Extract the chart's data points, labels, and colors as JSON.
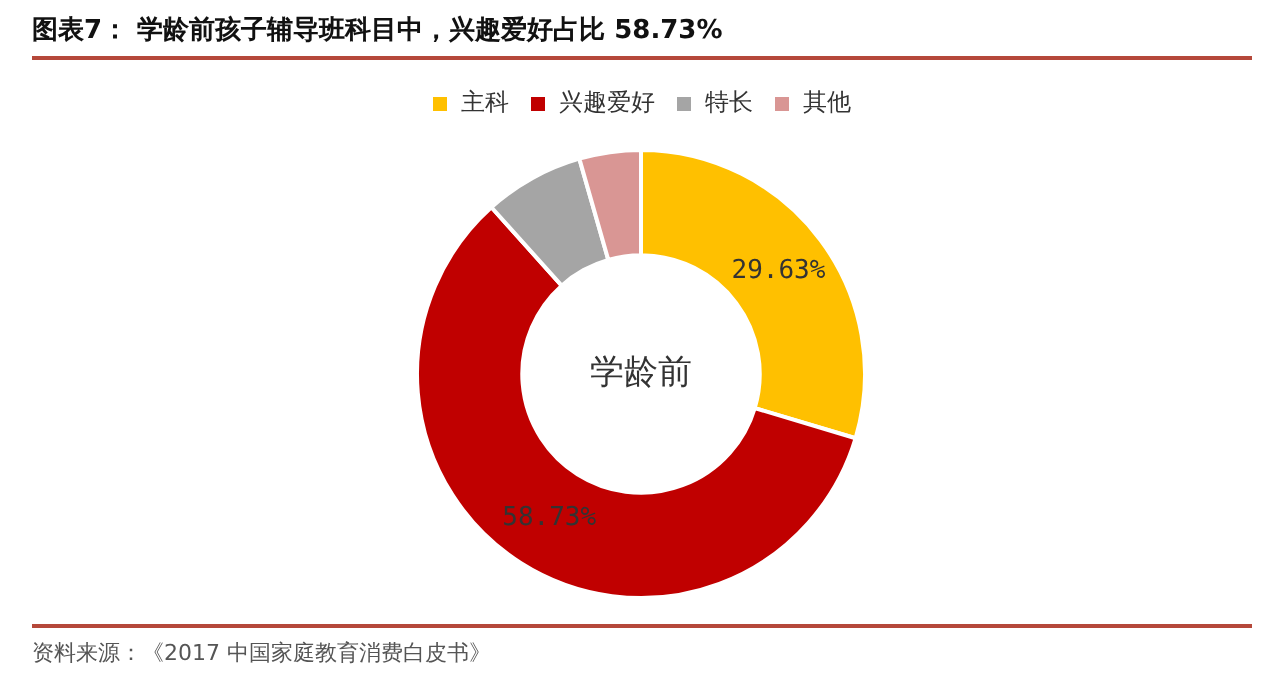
{
  "chart_data": {
    "type": "donut",
    "title": "图表7： 学龄前孩子辅导班科目中，兴趣爱好占比 58.73%",
    "categories": [
      "主科",
      "兴趣爱好",
      "特长",
      "其他"
    ],
    "values": [
      29.63,
      58.73,
      7.2,
      4.44
    ],
    "value_labels": [
      "29.63%",
      "58.73%",
      null,
      null
    ],
    "colors": [
      "#ffc000",
      "#c00000",
      "#a5a5a5",
      "#d99694"
    ],
    "legend": "top",
    "annotations": [
      "学龄前",
      "资料来源：《2017 中国家庭教育消费白皮书》"
    ]
  }
}
